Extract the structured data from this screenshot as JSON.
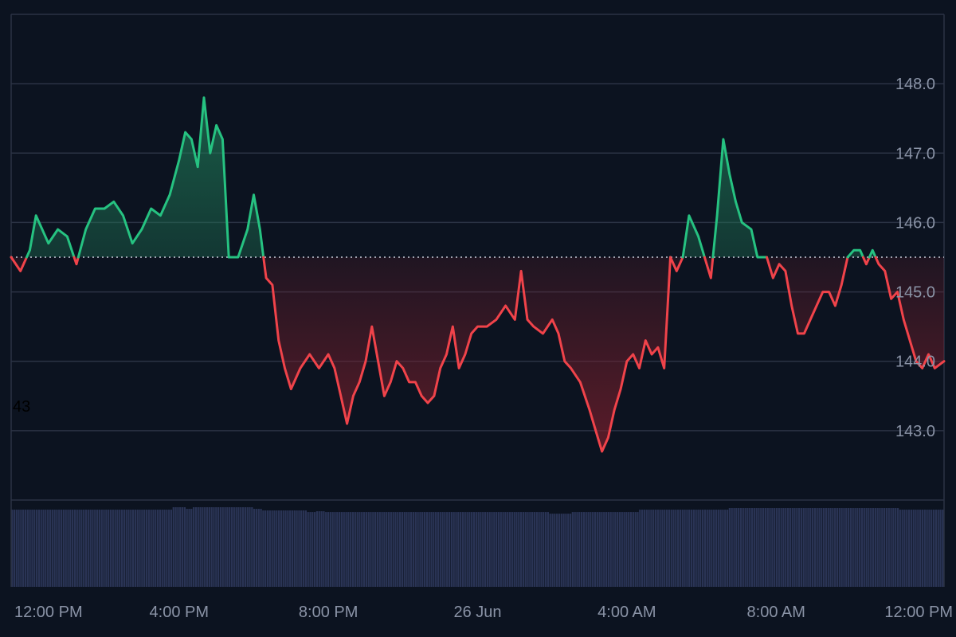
{
  "chart_data": {
    "type": "area",
    "baseline": 145.5,
    "stray_label": "43",
    "ylim": [
      142.0,
      149.0
    ],
    "y_ticks": [
      {
        "value": 143.0,
        "label": "143.0"
      },
      {
        "value": 144.0,
        "label": "144.0"
      },
      {
        "value": 145.0,
        "label": "145.0"
      },
      {
        "value": 146.0,
        "label": "146.0"
      },
      {
        "value": 147.0,
        "label": "147.0"
      },
      {
        "value": 148.0,
        "label": "148.0"
      }
    ],
    "x_range": [
      "2024-06-25 11:30",
      "2024-06-26 12:30"
    ],
    "x_ticks": [
      {
        "value": "2024-06-25 12:00",
        "label": "12:00 PM"
      },
      {
        "value": "2024-06-25 16:00",
        "label": "4:00 PM"
      },
      {
        "value": "2024-06-25 20:00",
        "label": "8:00 PM"
      },
      {
        "value": "2024-06-26 00:00",
        "label": "26 Jun"
      },
      {
        "value": "2024-06-26 04:00",
        "label": "4:00 AM"
      },
      {
        "value": "2024-06-26 08:00",
        "label": "8:00 AM"
      },
      {
        "value": "2024-06-26 12:00",
        "label": "12:00 PM"
      }
    ],
    "series": [
      {
        "points": [
          [
            "2024-06-25 11:30",
            145.5
          ],
          [
            "2024-06-25 11:45",
            145.3
          ],
          [
            "2024-06-25 12:00",
            145.6
          ],
          [
            "2024-06-25 12:10",
            146.1
          ],
          [
            "2024-06-25 12:20",
            145.9
          ],
          [
            "2024-06-25 12:30",
            145.7
          ],
          [
            "2024-06-25 12:45",
            145.9
          ],
          [
            "2024-06-25 13:00",
            145.8
          ],
          [
            "2024-06-25 13:15",
            145.4
          ],
          [
            "2024-06-25 13:30",
            145.9
          ],
          [
            "2024-06-25 13:45",
            146.2
          ],
          [
            "2024-06-25 14:00",
            146.2
          ],
          [
            "2024-06-25 14:15",
            146.3
          ],
          [
            "2024-06-25 14:30",
            146.1
          ],
          [
            "2024-06-25 14:45",
            145.7
          ],
          [
            "2024-06-25 15:00",
            145.9
          ],
          [
            "2024-06-25 15:15",
            146.2
          ],
          [
            "2024-06-25 15:30",
            146.1
          ],
          [
            "2024-06-25 15:45",
            146.4
          ],
          [
            "2024-06-25 16:00",
            146.9
          ],
          [
            "2024-06-25 16:10",
            147.3
          ],
          [
            "2024-06-25 16:20",
            147.2
          ],
          [
            "2024-06-25 16:30",
            146.8
          ],
          [
            "2024-06-25 16:40",
            147.8
          ],
          [
            "2024-06-25 16:50",
            147.0
          ],
          [
            "2024-06-25 17:00",
            147.4
          ],
          [
            "2024-06-25 17:10",
            147.2
          ],
          [
            "2024-06-25 17:20",
            145.5
          ],
          [
            "2024-06-25 17:35",
            145.5
          ],
          [
            "2024-06-25 17:50",
            145.9
          ],
          [
            "2024-06-25 18:00",
            146.4
          ],
          [
            "2024-06-25 18:10",
            145.9
          ],
          [
            "2024-06-25 18:20",
            145.2
          ],
          [
            "2024-06-25 18:30",
            145.1
          ],
          [
            "2024-06-25 18:40",
            144.3
          ],
          [
            "2024-06-25 18:50",
            143.9
          ],
          [
            "2024-06-25 19:00",
            143.6
          ],
          [
            "2024-06-25 19:15",
            143.9
          ],
          [
            "2024-06-25 19:30",
            144.1
          ],
          [
            "2024-06-25 19:45",
            143.9
          ],
          [
            "2024-06-25 20:00",
            144.1
          ],
          [
            "2024-06-25 20:10",
            143.9
          ],
          [
            "2024-06-25 20:20",
            143.5
          ],
          [
            "2024-06-25 20:30",
            143.1
          ],
          [
            "2024-06-25 20:40",
            143.5
          ],
          [
            "2024-06-25 20:50",
            143.7
          ],
          [
            "2024-06-25 21:00",
            144.0
          ],
          [
            "2024-06-25 21:10",
            144.5
          ],
          [
            "2024-06-25 21:20",
            144.0
          ],
          [
            "2024-06-25 21:30",
            143.5
          ],
          [
            "2024-06-25 21:40",
            143.7
          ],
          [
            "2024-06-25 21:50",
            144.0
          ],
          [
            "2024-06-25 22:00",
            143.9
          ],
          [
            "2024-06-25 22:10",
            143.7
          ],
          [
            "2024-06-25 22:20",
            143.7
          ],
          [
            "2024-06-25 22:30",
            143.5
          ],
          [
            "2024-06-25 22:40",
            143.4
          ],
          [
            "2024-06-25 22:50",
            143.5
          ],
          [
            "2024-06-25 23:00",
            143.9
          ],
          [
            "2024-06-25 23:10",
            144.1
          ],
          [
            "2024-06-25 23:20",
            144.5
          ],
          [
            "2024-06-25 23:30",
            143.9
          ],
          [
            "2024-06-25 23:40",
            144.1
          ],
          [
            "2024-06-25 23:50",
            144.4
          ],
          [
            "2024-06-26 00:00",
            144.5
          ],
          [
            "2024-06-26 00:15",
            144.5
          ],
          [
            "2024-06-26 00:30",
            144.6
          ],
          [
            "2024-06-26 00:45",
            144.8
          ],
          [
            "2024-06-26 01:00",
            144.6
          ],
          [
            "2024-06-26 01:10",
            145.3
          ],
          [
            "2024-06-26 01:20",
            144.6
          ],
          [
            "2024-06-26 01:30",
            144.5
          ],
          [
            "2024-06-26 01:45",
            144.4
          ],
          [
            "2024-06-26 02:00",
            144.6
          ],
          [
            "2024-06-26 02:10",
            144.4
          ],
          [
            "2024-06-26 02:20",
            144.0
          ],
          [
            "2024-06-26 02:30",
            143.9
          ],
          [
            "2024-06-26 02:45",
            143.7
          ],
          [
            "2024-06-26 03:00",
            143.3
          ],
          [
            "2024-06-26 03:10",
            143.0
          ],
          [
            "2024-06-26 03:20",
            142.7
          ],
          [
            "2024-06-26 03:30",
            142.9
          ],
          [
            "2024-06-26 03:40",
            143.3
          ],
          [
            "2024-06-26 03:50",
            143.6
          ],
          [
            "2024-06-26 04:00",
            144.0
          ],
          [
            "2024-06-26 04:10",
            144.1
          ],
          [
            "2024-06-26 04:20",
            143.9
          ],
          [
            "2024-06-26 04:30",
            144.3
          ],
          [
            "2024-06-26 04:40",
            144.1
          ],
          [
            "2024-06-26 04:50",
            144.2
          ],
          [
            "2024-06-26 05:00",
            143.9
          ],
          [
            "2024-06-26 05:10",
            145.5
          ],
          [
            "2024-06-26 05:20",
            145.3
          ],
          [
            "2024-06-26 05:30",
            145.5
          ],
          [
            "2024-06-26 05:40",
            146.1
          ],
          [
            "2024-06-26 05:55",
            145.8
          ],
          [
            "2024-06-26 06:05",
            145.5
          ],
          [
            "2024-06-26 06:15",
            145.2
          ],
          [
            "2024-06-26 06:25",
            146.1
          ],
          [
            "2024-06-26 06:35",
            147.2
          ],
          [
            "2024-06-26 06:45",
            146.7
          ],
          [
            "2024-06-26 06:55",
            146.3
          ],
          [
            "2024-06-26 07:05",
            146.0
          ],
          [
            "2024-06-26 07:20",
            145.9
          ],
          [
            "2024-06-26 07:30",
            145.5
          ],
          [
            "2024-06-26 07:45",
            145.5
          ],
          [
            "2024-06-26 07:55",
            145.2
          ],
          [
            "2024-06-26 08:05",
            145.4
          ],
          [
            "2024-06-26 08:15",
            145.3
          ],
          [
            "2024-06-26 08:25",
            144.8
          ],
          [
            "2024-06-26 08:35",
            144.4
          ],
          [
            "2024-06-26 08:45",
            144.4
          ],
          [
            "2024-06-26 08:55",
            144.6
          ],
          [
            "2024-06-26 09:05",
            144.8
          ],
          [
            "2024-06-26 09:15",
            145.0
          ],
          [
            "2024-06-26 09:25",
            145.0
          ],
          [
            "2024-06-26 09:35",
            144.8
          ],
          [
            "2024-06-26 09:45",
            145.1
          ],
          [
            "2024-06-26 09:55",
            145.5
          ],
          [
            "2024-06-26 10:05",
            145.6
          ],
          [
            "2024-06-26 10:15",
            145.6
          ],
          [
            "2024-06-26 10:25",
            145.4
          ],
          [
            "2024-06-26 10:35",
            145.6
          ],
          [
            "2024-06-26 10:45",
            145.4
          ],
          [
            "2024-06-26 10:55",
            145.3
          ],
          [
            "2024-06-26 11:05",
            144.9
          ],
          [
            "2024-06-26 11:15",
            145.0
          ],
          [
            "2024-06-26 11:25",
            144.6
          ],
          [
            "2024-06-26 11:35",
            144.3
          ],
          [
            "2024-06-26 11:45",
            144.0
          ],
          [
            "2024-06-26 11:55",
            143.9
          ],
          [
            "2024-06-26 12:05",
            144.1
          ],
          [
            "2024-06-26 12:15",
            143.9
          ],
          [
            "2024-06-26 12:30",
            144.0
          ]
        ]
      }
    ],
    "colors": {
      "background": "#0c1320",
      "up_line": "#26c281",
      "down_line": "#f0434a",
      "up_fill": "#1f7a57",
      "down_fill": "#7a1f2c",
      "grid": "#2b3344",
      "baseline": "#c9cfdb",
      "volume": "#2a3455",
      "axis_text": "#8a93a6",
      "stray_text": "#000000"
    },
    "grid": true,
    "volume": {
      "levels": [
        0.96,
        0.96,
        0.96,
        0.96,
        0.96,
        0.96,
        0.96,
        0.96,
        0.96,
        0.96,
        0.96,
        0.96,
        0.96,
        0.96,
        0.96,
        0.96,
        0.96,
        0.96,
        0.96,
        0.96,
        0.96,
        0.96,
        0.96,
        0.96,
        0.96,
        0.96,
        0.96,
        0.96,
        0.96,
        0.96,
        0.96,
        0.96,
        0.96,
        0.96,
        0.96,
        0.96,
        0.96,
        0.96,
        0.96,
        0.96,
        0.96,
        0.96,
        0.96,
        0.96,
        0.96,
        0.96,
        0.96,
        0.96,
        0.96,
        0.96,
        0.96,
        0.96,
        0.96,
        0.96,
        0.96,
        0.96,
        0.96,
        0.96,
        0.96,
        0.96,
        0.96,
        0.96,
        0.96,
        0.96,
        0.96,
        0.96,
        0.96,
        0.96,
        0.96,
        0.96,
        0.96,
        0.96,
        0.99,
        0.99,
        0.99,
        0.99,
        0.99,
        0.99,
        0.97,
        0.97,
        0.97,
        0.99,
        0.99,
        0.99,
        0.99,
        0.99,
        0.99,
        0.99,
        0.99,
        0.99,
        0.99,
        0.99,
        0.99,
        0.99,
        0.99,
        0.99,
        0.99,
        0.99,
        0.99,
        0.99,
        0.99,
        0.99,
        0.99,
        0.99,
        0.99,
        0.99,
        0.99,
        0.99,
        0.97,
        0.97,
        0.97,
        0.97,
        0.95,
        0.95,
        0.95,
        0.95,
        0.95,
        0.95,
        0.95,
        0.95,
        0.95,
        0.95,
        0.95,
        0.95,
        0.95,
        0.95,
        0.95,
        0.95,
        0.95,
        0.95,
        0.95,
        0.95,
        0.93,
        0.93,
        0.93,
        0.93,
        0.94,
        0.94,
        0.94,
        0.94,
        0.93,
        0.93,
        0.93,
        0.93,
        0.93,
        0.93,
        0.93,
        0.93,
        0.93,
        0.93,
        0.93,
        0.93,
        0.93,
        0.93,
        0.93,
        0.93,
        0.93,
        0.93,
        0.93,
        0.93,
        0.93,
        0.93,
        0.93,
        0.93,
        0.93,
        0.93,
        0.93,
        0.93,
        0.93,
        0.93,
        0.93,
        0.93,
        0.93,
        0.93,
        0.93,
        0.93,
        0.93,
        0.93,
        0.93,
        0.93,
        0.93,
        0.93,
        0.93,
        0.93,
        0.93,
        0.93,
        0.93,
        0.93,
        0.93,
        0.93,
        0.93,
        0.93,
        0.93,
        0.93,
        0.93,
        0.93,
        0.93,
        0.93,
        0.93,
        0.93,
        0.93,
        0.93,
        0.93,
        0.93,
        0.93,
        0.93,
        0.93,
        0.93,
        0.93,
        0.93,
        0.93,
        0.93,
        0.93,
        0.93,
        0.93,
        0.93,
        0.93,
        0.93,
        0.93,
        0.93,
        0.93,
        0.93,
        0.93,
        0.93,
        0.93,
        0.93,
        0.93,
        0.93,
        0.93,
        0.93,
        0.93,
        0.93,
        0.93,
        0.93,
        0.93,
        0.93,
        0.93,
        0.93,
        0.93,
        0.93,
        0.91,
        0.91,
        0.91,
        0.91,
        0.91,
        0.91,
        0.91,
        0.91,
        0.91,
        0.91,
        0.93,
        0.93,
        0.93,
        0.93,
        0.93,
        0.93,
        0.93,
        0.93,
        0.93,
        0.93,
        0.93,
        0.93,
        0.93,
        0.93,
        0.93,
        0.93,
        0.93,
        0.93,
        0.93,
        0.93,
        0.93,
        0.93,
        0.93,
        0.93,
        0.93,
        0.93,
        0.93,
        0.93,
        0.93,
        0.93,
        0.96,
        0.96,
        0.96,
        0.96,
        0.96,
        0.96,
        0.96,
        0.96,
        0.96,
        0.96,
        0.96,
        0.96,
        0.96,
        0.96,
        0.96,
        0.96,
        0.96,
        0.96,
        0.96,
        0.96,
        0.96,
        0.96,
        0.96,
        0.96,
        0.96,
        0.96,
        0.96,
        0.96,
        0.96,
        0.96,
        0.96,
        0.96,
        0.96,
        0.96,
        0.96,
        0.96,
        0.96,
        0.96,
        0.96,
        0.96,
        0.98,
        0.98,
        0.98,
        0.98,
        0.98,
        0.98,
        0.98,
        0.98,
        0.98,
        0.98,
        0.98,
        0.98,
        0.98,
        0.98,
        0.98,
        0.98,
        0.98,
        0.98,
        0.98,
        0.98,
        0.98,
        0.98,
        0.98,
        0.98,
        0.98,
        0.98,
        0.98,
        0.98,
        0.98,
        0.98,
        0.98,
        0.98,
        0.98,
        0.98,
        0.98,
        0.98,
        0.98,
        0.98,
        0.98,
        0.98,
        0.98,
        0.98,
        0.98,
        0.98,
        0.98,
        0.98,
        0.98,
        0.98,
        0.98,
        0.98,
        0.98,
        0.98,
        0.98,
        0.98,
        0.98,
        0.98,
        0.98,
        0.98,
        0.98,
        0.98,
        0.98,
        0.98,
        0.98,
        0.98,
        0.98,
        0.98,
        0.98,
        0.98,
        0.98,
        0.98,
        0.98,
        0.98,
        0.98,
        0.98,
        0.98,
        0.98,
        0.96,
        0.96,
        0.96,
        0.96,
        0.96,
        0.96,
        0.96,
        0.96,
        0.96,
        0.96,
        0.96,
        0.96,
        0.96,
        0.96,
        0.96,
        0.96,
        0.96,
        0.96,
        0.96,
        0.96
      ]
    }
  }
}
